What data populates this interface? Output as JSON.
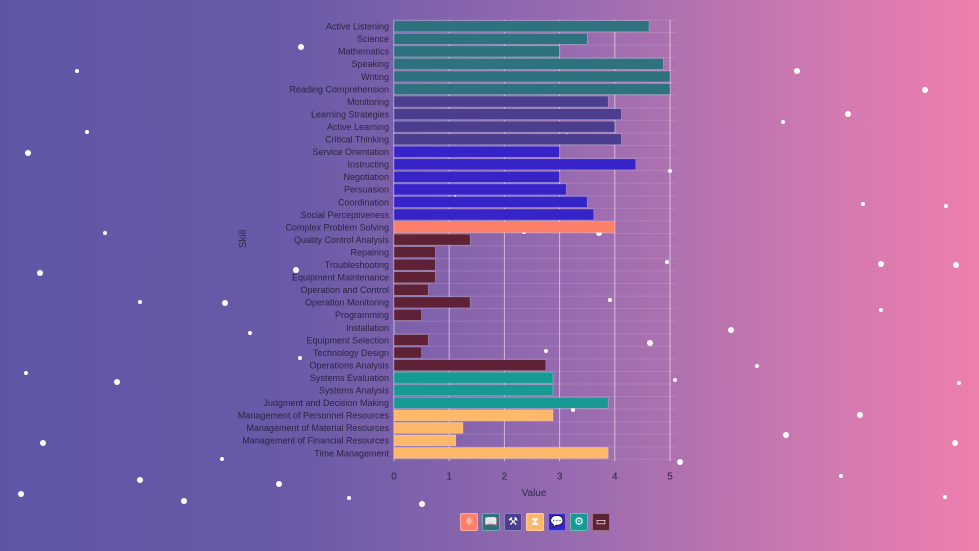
{
  "chart_data": {
    "type": "bar",
    "orientation": "horizontal",
    "title": "",
    "xlabel": "Value",
    "ylabel": "Skill",
    "xlim": [
      0,
      5
    ],
    "xticks": [
      "0",
      "1",
      "2",
      "3",
      "4",
      "5"
    ],
    "grid": true,
    "categories": [
      "Active Listening",
      "Science",
      "Mathematics",
      "Speaking",
      "Writing",
      "Reading Comprehension",
      "Monitoring",
      "Learning Strategies",
      "Active Learning",
      "Critical Thinking",
      "Service Orientation",
      "Instructing",
      "Negotiation",
      "Persuasion",
      "Coordination",
      "Social Perceptiveness",
      "Complex Problem Solving",
      "Quality Control Analysis",
      "Repairing",
      "Troubleshooting",
      "Equipment Maintenance",
      "Operation and Control",
      "Operation Monitoring",
      "Programming",
      "Installation",
      "Equipment Selection",
      "Technology Design",
      "Operations Analysis",
      "Systems Evaluation",
      "Systems Analysis",
      "Judgment and Decision Making",
      "Management of Personnel Resources",
      "Management of Material Resources",
      "Management of Financial Resources",
      "Time Management"
    ],
    "values": [
      4.62,
      3.5,
      3.0,
      4.88,
      5.0,
      5.0,
      3.88,
      4.12,
      4.0,
      4.12,
      3.0,
      4.38,
      3.0,
      3.12,
      3.5,
      3.62,
      4.0,
      1.38,
      0.75,
      0.75,
      0.75,
      0.62,
      1.38,
      0.5,
      0.0,
      0.62,
      0.5,
      2.75,
      2.88,
      2.88,
      3.88,
      2.88,
      1.25,
      1.12,
      3.88
    ],
    "groups": [
      "basic",
      "basic",
      "basic",
      "basic",
      "basic",
      "basic",
      "learning",
      "learning",
      "learning",
      "learning",
      "social",
      "social",
      "social",
      "social",
      "social",
      "social",
      "problem",
      "technical",
      "technical",
      "technical",
      "technical",
      "technical",
      "technical",
      "technical",
      "technical",
      "technical",
      "technical",
      "technical",
      "systems",
      "systems",
      "systems",
      "resource",
      "resource",
      "resource",
      "resource"
    ],
    "group_colors": {
      "basic": "#2e7280",
      "learning": "#4c3e8f",
      "social": "#3624c8",
      "problem": "#fe7f6a",
      "technical": "#5e2136",
      "systems": "#179a93",
      "resource": "#ffb86a"
    }
  },
  "legend": [
    {
      "icon": "⚛",
      "group": "problem",
      "color": "#fe7f6a",
      "name": "atom-icon"
    },
    {
      "icon": "📖",
      "group": "basic",
      "color": "#2e7280",
      "name": "book-icon"
    },
    {
      "icon": "⚒",
      "group": "learning",
      "color": "#4c3e8f",
      "name": "gavel-icon"
    },
    {
      "icon": "⧗",
      "group": "resource",
      "color": "#ffb86a",
      "name": "hourglass-icon"
    },
    {
      "icon": "💬",
      "group": "social",
      "color": "#3624c8",
      "name": "speech-bubble-icon"
    },
    {
      "icon": "⚙",
      "group": "systems",
      "color": "#179a93",
      "name": "network-icon"
    },
    {
      "icon": "▭",
      "group": "technical",
      "color": "#5e2136",
      "name": "monitor-icon"
    }
  ]
}
